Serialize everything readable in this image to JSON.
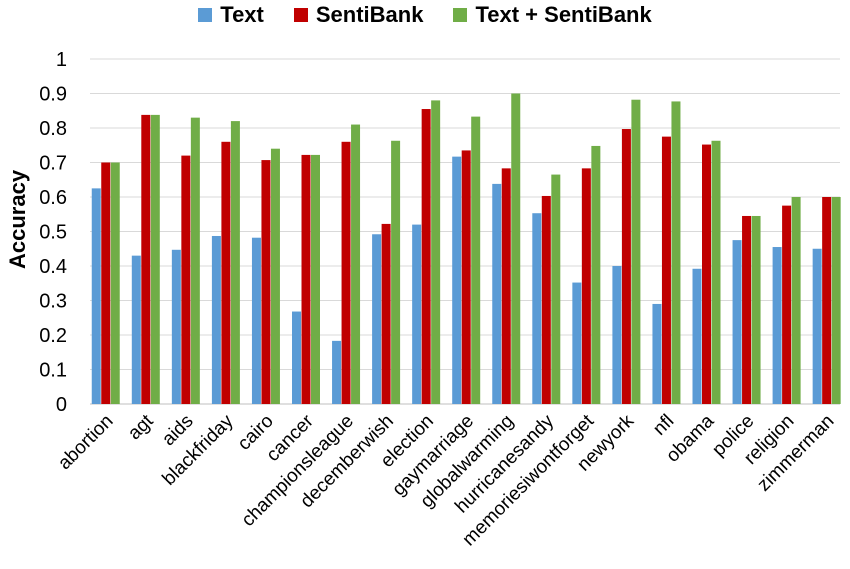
{
  "chart_data": {
    "type": "bar",
    "title": "",
    "xlabel": "",
    "ylabel": "Accuracy",
    "ylim": [
      0,
      1
    ],
    "yticks": [
      "0",
      "0.1",
      "0.2",
      "0.3",
      "0.4",
      "0.5",
      "0.6",
      "0.7",
      "0.8",
      "0.9",
      "1"
    ],
    "grid": "horizontal",
    "legend_position": "top",
    "categories": [
      "abortion",
      "agt",
      "aids",
      "blackfriday",
      "cairo",
      "cancer",
      "championsleague",
      "decemberwish",
      "election",
      "gaymarriage",
      "globalwarming",
      "hurricanesandy",
      "memoriesiwontforget",
      "newyork",
      "nfl",
      "obama",
      "police",
      "religion",
      "zimmerman"
    ],
    "series": [
      {
        "name": "Text",
        "color": "#5b9bd5",
        "values": [
          0.625,
          0.43,
          0.447,
          0.487,
          0.482,
          0.268,
          0.183,
          0.492,
          0.52,
          0.717,
          0.638,
          0.553,
          0.352,
          0.4,
          0.29,
          0.392,
          0.475,
          0.455,
          0.45
        ]
      },
      {
        "name": "SentiBank",
        "color": "#c00000",
        "values": [
          0.7,
          0.838,
          0.72,
          0.76,
          0.707,
          0.722,
          0.76,
          0.522,
          0.855,
          0.735,
          0.683,
          0.603,
          0.683,
          0.797,
          0.775,
          0.752,
          0.545,
          0.575,
          0.6
        ]
      },
      {
        "name": "Text + SentiBank",
        "color": "#70ad47",
        "values": [
          0.7,
          0.838,
          0.83,
          0.82,
          0.74,
          0.722,
          0.81,
          0.763,
          0.88,
          0.833,
          0.9,
          0.665,
          0.748,
          0.882,
          0.877,
          0.763,
          0.545,
          0.6,
          0.6
        ]
      }
    ]
  }
}
